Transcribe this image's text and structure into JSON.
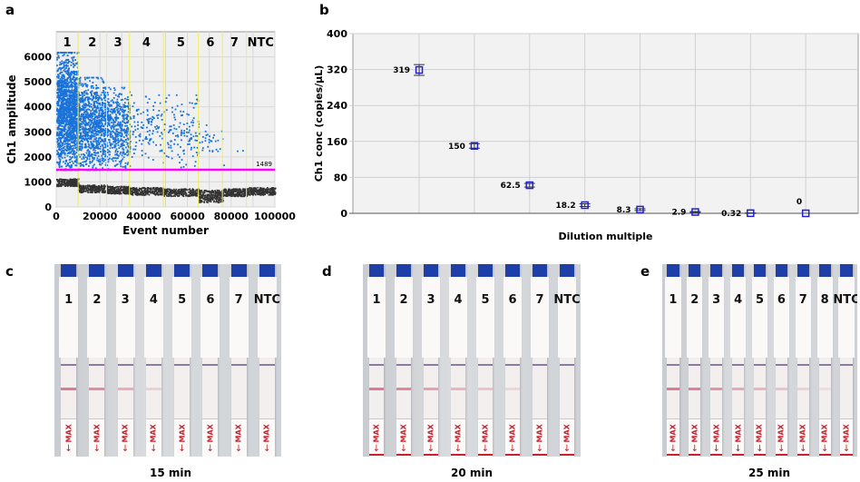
{
  "panels": {
    "a": "a",
    "b": "b",
    "c": "c",
    "d": "d",
    "e": "e"
  },
  "chart_data": [
    {
      "type": "scatter",
      "xlabel": "Event number",
      "ylabel": "Ch1 amplitude",
      "xlim": [
        0,
        100000
      ],
      "ylim": [
        0,
        7000
      ],
      "xticks": [
        "0",
        "20000",
        "40000",
        "60000",
        "80000",
        "100000"
      ],
      "yticks": [
        "0",
        "1000",
        "2000",
        "3000",
        "4000",
        "5000",
        "6000"
      ],
      "grid": true,
      "threshold": {
        "value": 1489,
        "label": "1489",
        "color": "#ff00ff"
      },
      "segments": [
        {
          "label": "1",
          "range": [
            0,
            10000
          ],
          "positive_density": "very high",
          "positive_amp": [
            1500,
            6200
          ],
          "negative_amp": 1000
        },
        {
          "label": "2",
          "range": [
            10000,
            23000
          ],
          "positive_density": "high",
          "positive_amp": [
            1500,
            5200
          ],
          "negative_amp": 750
        },
        {
          "label": "3",
          "range": [
            23000,
            33500
          ],
          "positive_density": "medium",
          "positive_amp": [
            1500,
            4800
          ],
          "negative_amp": 700
        },
        {
          "label": "4",
          "range": [
            33500,
            49000
          ],
          "positive_density": "low",
          "positive_amp": [
            1800,
            4500
          ],
          "negative_amp": 650
        },
        {
          "label": "5",
          "range": [
            49000,
            65000
          ],
          "positive_density": "low",
          "positive_amp": [
            1600,
            4500
          ],
          "negative_amp": 600
        },
        {
          "label": "6",
          "range": [
            65000,
            76000
          ],
          "positive_density": "very low",
          "positive_amp": [
            2100,
            3300
          ],
          "negative_amp": 450
        },
        {
          "label": "7",
          "range": [
            76000,
            87000
          ],
          "positive_density": "rare",
          "positive_amp": [
            1600,
            3000
          ],
          "negative_amp": 600
        },
        {
          "label": "NTC",
          "range": [
            87000,
            100000
          ],
          "positive_density": "none",
          "negative_amp": 650
        }
      ],
      "colors": {
        "positive": "#1a73d9",
        "negative": "#333333",
        "divider": "#f0f060"
      }
    },
    {
      "type": "scatter",
      "xlabel": "Dilution multiple",
      "ylabel": "Ch1 conc (copies/µL)",
      "ylim": [
        0,
        400
      ],
      "yticks": [
        "0",
        "80",
        "160",
        "240",
        "320",
        "400"
      ],
      "grid": true,
      "values": [
        319,
        150,
        62.5,
        18.2,
        8.3,
        2.9,
        0.32,
        0
      ],
      "labels": [
        "319",
        "150",
        "62.5",
        "18.2",
        "8.3",
        "2.9",
        "0.32",
        "0"
      ],
      "error": [
        12,
        5,
        4,
        3,
        2,
        1,
        0.5,
        0
      ],
      "marker_color": "#2020d0"
    }
  ],
  "strip_panels": [
    {
      "caption": "15 min",
      "strips": [
        {
          "label": "1",
          "test": 0.9
        },
        {
          "label": "2",
          "test": 0.75
        },
        {
          "label": "3",
          "test": 0.5
        },
        {
          "label": "4",
          "test": 0.25
        },
        {
          "label": "5",
          "test": 0
        },
        {
          "label": "6",
          "test": 0
        },
        {
          "label": "7",
          "test": 0
        },
        {
          "label": "NTC",
          "test": 0
        }
      ]
    },
    {
      "caption": "20 min",
      "strips": [
        {
          "label": "1",
          "test": 0.9
        },
        {
          "label": "2",
          "test": 0.8
        },
        {
          "label": "3",
          "test": 0.6
        },
        {
          "label": "4",
          "test": 0.45
        },
        {
          "label": "5",
          "test": 0.35
        },
        {
          "label": "6",
          "test": 0.2
        },
        {
          "label": "7",
          "test": 0
        },
        {
          "label": "NTC",
          "test": 0
        }
      ]
    },
    {
      "caption": "25 min",
      "strips": [
        {
          "label": "1",
          "test": 0.9
        },
        {
          "label": "2",
          "test": 0.85
        },
        {
          "label": "3",
          "test": 0.7
        },
        {
          "label": "4",
          "test": 0.55
        },
        {
          "label": "5",
          "test": 0.45
        },
        {
          "label": "6",
          "test": 0.35
        },
        {
          "label": "7",
          "test": 0.25
        },
        {
          "label": "8",
          "test": 0.15
        },
        {
          "label": "NTC",
          "test": 0
        }
      ]
    }
  ],
  "strip_text": {
    "max": "MAX",
    "arrow": "↓"
  }
}
